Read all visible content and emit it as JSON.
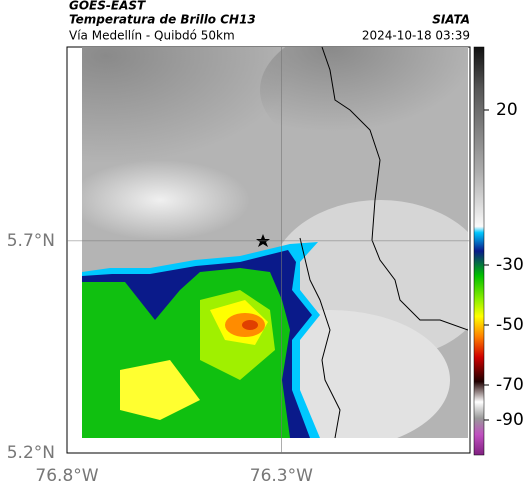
{
  "header": {
    "satellite": "GOES-EAST",
    "title": "Temperatura de Brillo CH13",
    "location": "Vía Medellín - Quibdó 50km",
    "source": "SIATA",
    "datetime": "2024-10-18 03:39"
  },
  "map": {
    "xlim": [
      -76.8,
      -75.86
    ],
    "ylim": [
      5.2,
      6.157
    ],
    "xticks": [
      {
        "value": -76.8,
        "label": "76.8°W"
      },
      {
        "value": -76.3,
        "label": "76.3°W"
      }
    ],
    "yticks": [
      {
        "value": 5.2,
        "label": "5.2°N"
      },
      {
        "value": 5.7,
        "label": "5.7°N"
      }
    ]
  },
  "colorbar": {
    "ticks": [
      20,
      -30,
      -50,
      -70,
      -90
    ]
  }
}
